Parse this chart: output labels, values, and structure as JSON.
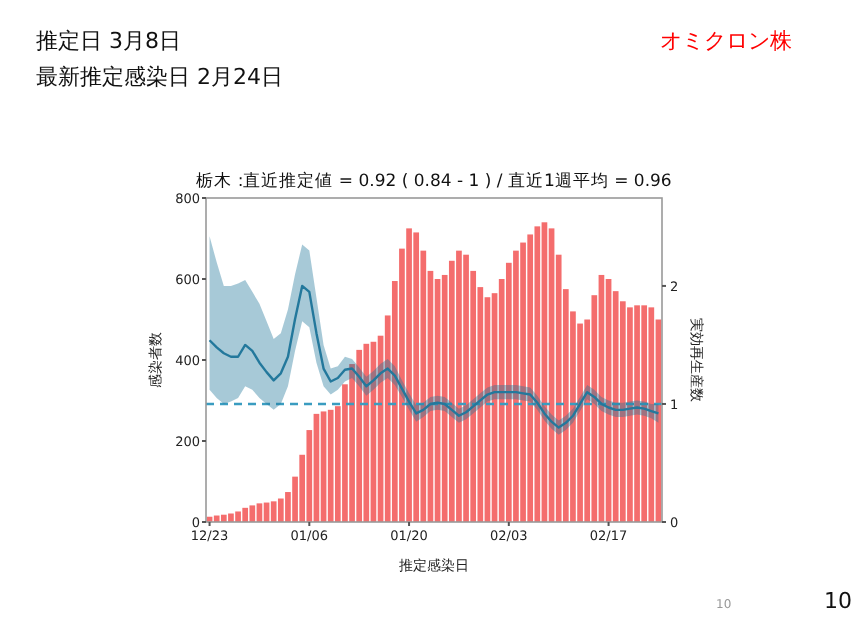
{
  "chart_data": {
    "type": "bar",
    "title": "栃木 :直近推定値 = 0.92 ( 0.84 - 1 ) / 直近1週平均 = 0.96",
    "xlabel": "推定感染日",
    "ylabel": "感染者数",
    "y2label": "実効再生産数",
    "annotations": [
      "推定日  3月8日",
      "最新推定感染日  2月24日",
      "オミクロン株",
      "10",
      "10"
    ],
    "categories": [
      "12/23",
      null,
      null,
      null,
      null,
      null,
      null,
      null,
      null,
      null,
      null,
      null,
      null,
      null,
      "01/06",
      null,
      null,
      null,
      null,
      null,
      null,
      null,
      null,
      null,
      null,
      null,
      null,
      null,
      "01/20",
      null,
      null,
      null,
      null,
      null,
      null,
      null,
      null,
      null,
      null,
      null,
      null,
      null,
      "02/03",
      null,
      null,
      null,
      null,
      null,
      null,
      null,
      null,
      null,
      null,
      null,
      null,
      null,
      "02/17",
      null,
      null,
      null,
      null,
      null,
      null,
      null
    ],
    "series": [
      {
        "color": "#f46d6d",
        "values": [
          13,
          16,
          18,
          21,
          26,
          35,
          41,
          46,
          48,
          51,
          58,
          74,
          112,
          166,
          227,
          267,
          273,
          277,
          286,
          340,
          390,
          425,
          440,
          445,
          460,
          510,
          595,
          675,
          725,
          715,
          670,
          620,
          600,
          610,
          645,
          670,
          660,
          620,
          580,
          555,
          565,
          600,
          640,
          670,
          690,
          710,
          730,
          740,
          725,
          660,
          575,
          520,
          490,
          500,
          560,
          610,
          600,
          570,
          545,
          530,
          535,
          535,
          530,
          500
        ]
      },
      {
        "type": "line",
        "axis": "y2",
        "color": "#23789c",
        "values": [
          1.54,
          1.48,
          1.43,
          1.4,
          1.4,
          1.5,
          1.45,
          1.35,
          1.27,
          1.2,
          1.26,
          1.4,
          1.72,
          2.0,
          1.95,
          1.6,
          1.3,
          1.19,
          1.22,
          1.29,
          1.3,
          1.23,
          1.15,
          1.2,
          1.26,
          1.3,
          1.24,
          1.13,
          1.02,
          0.92,
          0.95,
          1.0,
          1.01,
          1.0,
          0.95,
          0.9,
          0.93,
          0.98,
          1.03,
          1.08,
          1.1,
          1.1,
          1.1,
          1.1,
          1.09,
          1.08,
          1.01,
          0.92,
          0.85,
          0.8,
          0.84,
          0.9,
          1.0,
          1.1,
          1.06,
          1.0,
          0.97,
          0.95,
          0.95,
          0.96,
          0.97,
          0.96,
          0.94,
          0.92
        ],
        "lower": [
          1.12,
          1.05,
          1.0,
          1.02,
          1.05,
          1.15,
          1.12,
          1.05,
          1.0,
          0.95,
          1.0,
          1.15,
          1.45,
          1.7,
          1.65,
          1.35,
          1.15,
          1.08,
          1.12,
          1.19,
          1.22,
          1.15,
          1.07,
          1.12,
          1.18,
          1.22,
          1.16,
          1.06,
          0.95,
          0.85,
          0.89,
          0.94,
          0.95,
          0.94,
          0.89,
          0.84,
          0.87,
          0.92,
          0.97,
          1.02,
          1.04,
          1.04,
          1.04,
          1.04,
          1.03,
          1.02,
          0.95,
          0.86,
          0.79,
          0.74,
          0.78,
          0.84,
          0.94,
          1.04,
          1.0,
          0.94,
          0.91,
          0.89,
          0.89,
          0.9,
          0.91,
          0.9,
          0.88,
          0.84
        ],
        "upper": [
          2.42,
          2.2,
          2.0,
          2.0,
          2.02,
          2.05,
          1.95,
          1.85,
          1.7,
          1.55,
          1.6,
          1.8,
          2.1,
          2.35,
          2.3,
          1.9,
          1.5,
          1.3,
          1.32,
          1.4,
          1.38,
          1.31,
          1.23,
          1.28,
          1.34,
          1.38,
          1.32,
          1.2,
          1.09,
          0.99,
          1.01,
          1.06,
          1.07,
          1.06,
          1.01,
          0.96,
          0.99,
          1.04,
          1.09,
          1.14,
          1.16,
          1.16,
          1.16,
          1.16,
          1.15,
          1.14,
          1.07,
          0.98,
          0.91,
          0.86,
          0.9,
          0.96,
          1.06,
          1.16,
          1.12,
          1.06,
          1.03,
          1.01,
          1.01,
          1.02,
          1.03,
          1.02,
          1.0,
          1.0
        ]
      }
    ],
    "ylim": [
      0,
      800
    ],
    "yticks": [
      0,
      200,
      400,
      600,
      800
    ],
    "y2lim": [
      0,
      2.745
    ],
    "y2ticks": [
      0,
      1,
      2
    ],
    "ref_lines": [
      {
        "axis": "y2",
        "value": 1,
        "color": "#3a9cc0",
        "line_style": "dashed"
      }
    ],
    "grid": false
  }
}
